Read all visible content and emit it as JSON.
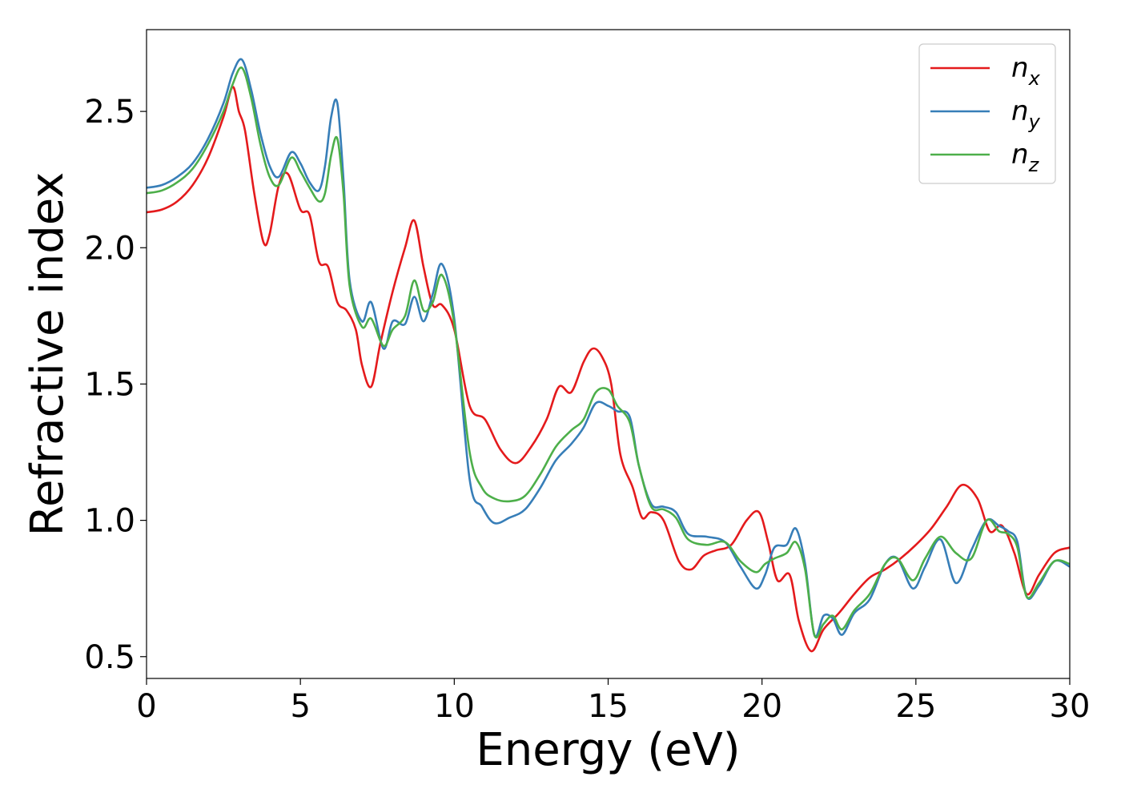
{
  "chart_data": {
    "type": "line",
    "title": "",
    "xlabel": "Energy (eV)",
    "ylabel": "Refractive index",
    "xlim": [
      0,
      30
    ],
    "ylim": [
      0.42,
      2.8
    ],
    "xticks": [
      0,
      5,
      10,
      15,
      20,
      25,
      30
    ],
    "xtick_labels": [
      "0",
      "5",
      "10",
      "15",
      "20",
      "25",
      "30"
    ],
    "yticks": [
      0.5,
      1.0,
      1.5,
      2.0,
      2.5
    ],
    "ytick_labels": [
      "0.5",
      "1.0",
      "1.5",
      "2.0",
      "2.5"
    ],
    "grid": false,
    "legend_position": "top-right",
    "series": [
      {
        "name": "n",
        "subscript": "x",
        "color": "#e41a1c",
        "x": [
          0,
          0.5,
          1,
          1.5,
          2,
          2.5,
          2.8,
          3.0,
          3.2,
          3.5,
          3.8,
          4.0,
          4.3,
          4.6,
          5.0,
          5.3,
          5.6,
          5.9,
          6.2,
          6.5,
          6.8,
          7.0,
          7.3,
          7.6,
          8.0,
          8.4,
          8.7,
          9.0,
          9.3,
          9.6,
          10.0,
          10.5,
          11.0,
          11.5,
          12.0,
          12.5,
          13.0,
          13.4,
          13.8,
          14.2,
          14.5,
          14.8,
          15.1,
          15.4,
          15.8,
          16.1,
          16.4,
          16.8,
          17.3,
          17.7,
          18.1,
          18.5,
          19.0,
          19.5,
          19.9,
          20.2,
          20.5,
          20.9,
          21.2,
          21.6,
          22.0,
          22.5,
          23.0,
          23.5,
          24.0,
          24.5,
          25.0,
          25.5,
          26.0,
          26.5,
          27.0,
          27.4,
          27.8,
          28.2,
          28.6,
          29.0,
          29.5,
          30.0
        ],
        "y": [
          2.13,
          2.14,
          2.17,
          2.23,
          2.33,
          2.48,
          2.59,
          2.5,
          2.43,
          2.2,
          2.02,
          2.05,
          2.23,
          2.27,
          2.14,
          2.12,
          1.95,
          1.93,
          1.8,
          1.77,
          1.7,
          1.57,
          1.49,
          1.65,
          1.84,
          2.0,
          2.1,
          1.93,
          1.79,
          1.79,
          1.7,
          1.42,
          1.37,
          1.26,
          1.21,
          1.27,
          1.37,
          1.49,
          1.47,
          1.58,
          1.63,
          1.6,
          1.5,
          1.24,
          1.12,
          1.01,
          1.03,
          1.0,
          0.85,
          0.82,
          0.87,
          0.89,
          0.91,
          1.0,
          1.03,
          0.92,
          0.78,
          0.8,
          0.63,
          0.52,
          0.6,
          0.66,
          0.73,
          0.79,
          0.82,
          0.86,
          0.91,
          0.97,
          1.05,
          1.13,
          1.08,
          0.96,
          0.98,
          0.88,
          0.73,
          0.8,
          0.88,
          0.9
        ]
      },
      {
        "name": "n",
        "subscript": "y",
        "color": "#377eb8",
        "x": [
          0,
          0.5,
          1,
          1.5,
          2,
          2.5,
          2.8,
          3.1,
          3.4,
          3.7,
          4.0,
          4.3,
          4.7,
          5.0,
          5.3,
          5.6,
          5.8,
          6.0,
          6.2,
          6.4,
          6.6,
          7.0,
          7.3,
          7.7,
          8.0,
          8.4,
          8.7,
          9.0,
          9.3,
          9.6,
          10.0,
          10.5,
          10.9,
          11.3,
          11.8,
          12.3,
          12.8,
          13.3,
          13.8,
          14.2,
          14.6,
          15.0,
          15.3,
          15.7,
          16.0,
          16.4,
          16.8,
          17.2,
          17.6,
          18.2,
          18.8,
          19.3,
          19.8,
          20.1,
          20.4,
          20.8,
          21.1,
          21.4,
          21.7,
          22.0,
          22.3,
          22.6,
          23.0,
          23.5,
          24.0,
          24.4,
          24.9,
          25.3,
          25.8,
          26.3,
          26.8,
          27.3,
          27.7,
          28.0,
          28.3,
          28.6,
          29.0,
          29.5,
          30.0
        ],
        "y": [
          2.22,
          2.23,
          2.26,
          2.31,
          2.4,
          2.53,
          2.64,
          2.69,
          2.58,
          2.42,
          2.3,
          2.26,
          2.35,
          2.31,
          2.24,
          2.21,
          2.3,
          2.48,
          2.53,
          2.25,
          1.88,
          1.73,
          1.8,
          1.63,
          1.73,
          1.72,
          1.82,
          1.73,
          1.83,
          1.94,
          1.74,
          1.15,
          1.05,
          0.99,
          1.01,
          1.04,
          1.12,
          1.22,
          1.28,
          1.34,
          1.43,
          1.42,
          1.4,
          1.38,
          1.2,
          1.06,
          1.05,
          1.03,
          0.95,
          0.94,
          0.92,
          0.83,
          0.75,
          0.8,
          0.9,
          0.91,
          0.97,
          0.84,
          0.58,
          0.65,
          0.64,
          0.58,
          0.66,
          0.71,
          0.84,
          0.86,
          0.75,
          0.83,
          0.93,
          0.77,
          0.89,
          1.0,
          0.98,
          0.96,
          0.92,
          0.72,
          0.76,
          0.85,
          0.83
        ]
      },
      {
        "name": "n",
        "subscript": "z",
        "color": "#4daf4a",
        "x": [
          0,
          0.5,
          1,
          1.5,
          2,
          2.5,
          2.8,
          3.1,
          3.4,
          3.7,
          4.0,
          4.3,
          4.7,
          5.0,
          5.3,
          5.6,
          5.8,
          6.0,
          6.2,
          6.4,
          6.6,
          7.0,
          7.3,
          7.7,
          8.0,
          8.4,
          8.7,
          9.0,
          9.3,
          9.6,
          10.0,
          10.5,
          10.9,
          11.3,
          11.8,
          12.3,
          12.8,
          13.3,
          13.8,
          14.2,
          14.6,
          15.0,
          15.3,
          15.7,
          16.0,
          16.4,
          16.8,
          17.2,
          17.6,
          18.2,
          18.8,
          19.3,
          19.8,
          20.1,
          20.4,
          20.8,
          21.1,
          21.4,
          21.7,
          22.0,
          22.3,
          22.6,
          23.0,
          23.5,
          24.0,
          24.4,
          24.9,
          25.3,
          25.8,
          26.3,
          26.8,
          27.3,
          27.7,
          28.0,
          28.3,
          28.6,
          29.0,
          29.5,
          30.0
        ],
        "y": [
          2.2,
          2.21,
          2.24,
          2.29,
          2.38,
          2.5,
          2.6,
          2.66,
          2.55,
          2.38,
          2.26,
          2.23,
          2.33,
          2.28,
          2.22,
          2.17,
          2.2,
          2.34,
          2.4,
          2.2,
          1.86,
          1.71,
          1.74,
          1.64,
          1.7,
          1.75,
          1.88,
          1.77,
          1.8,
          1.9,
          1.72,
          1.25,
          1.12,
          1.08,
          1.07,
          1.09,
          1.17,
          1.27,
          1.33,
          1.37,
          1.47,
          1.48,
          1.42,
          1.36,
          1.2,
          1.05,
          1.04,
          1.01,
          0.93,
          0.91,
          0.92,
          0.85,
          0.81,
          0.84,
          0.86,
          0.88,
          0.92,
          0.82,
          0.58,
          0.62,
          0.65,
          0.6,
          0.67,
          0.73,
          0.84,
          0.86,
          0.78,
          0.86,
          0.94,
          0.88,
          0.86,
          1.0,
          0.96,
          0.95,
          0.9,
          0.72,
          0.77,
          0.85,
          0.84
        ]
      }
    ]
  }
}
